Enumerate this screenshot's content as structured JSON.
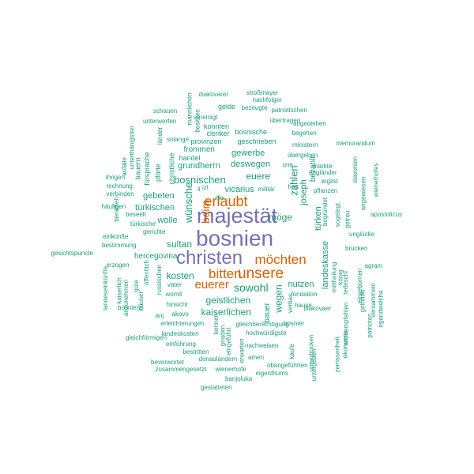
{
  "colors": {
    "purple": "#7570b3",
    "orange": "#d95f02",
    "green": "#1b9e77"
  },
  "words": [
    {
      "text": "bosnien",
      "color": "purple"
    },
    {
      "text": "majestät",
      "color": "purple"
    },
    {
      "text": "christen",
      "color": "purple"
    },
    {
      "text": "unsere",
      "color": "orange"
    },
    {
      "text": "erlaubt",
      "color": "orange"
    },
    {
      "text": "bitten",
      "color": "orange"
    },
    {
      "text": "möchten",
      "color": "orange"
    },
    {
      "text": "euerer",
      "color": "orange"
    },
    {
      "text": "beim",
      "color": "orange"
    },
    {
      "text": "zahlen",
      "color": "green"
    },
    {
      "text": "wünsche",
      "color": "green"
    },
    {
      "text": "bosnischen",
      "color": "green"
    },
    {
      "text": "sowohl",
      "color": "green"
    },
    {
      "text": "sultan",
      "color": "green"
    },
    {
      "text": "kosten",
      "color": "green"
    },
    {
      "text": "geistlichen",
      "color": "green"
    },
    {
      "text": "kaiserlichen",
      "color": "green"
    },
    {
      "text": "wegen",
      "color": "green"
    },
    {
      "text": "türkischen",
      "color": "green"
    },
    {
      "text": "wolle",
      "color": "green"
    },
    {
      "text": "euere",
      "color": "green"
    },
    {
      "text": "möge",
      "color": "green"
    },
    {
      "text": "gebeten",
      "color": "green"
    },
    {
      "text": "grundherrn",
      "color": "green"
    },
    {
      "text": "deswegen",
      "color": "green"
    },
    {
      "text": "vicarius",
      "color": "green"
    },
    {
      "text": "gewerbe",
      "color": "green"
    },
    {
      "text": "nutzen",
      "color": "green"
    },
    {
      "text": "türken",
      "color": "green"
    },
    {
      "text": "joseph",
      "color": "green"
    },
    {
      "text": "bezahlt",
      "color": "green"
    },
    {
      "text": "landeskasse",
      "color": "green"
    },
    {
      "text": "hercegovina",
      "color": "green"
    },
    {
      "text": "bauer",
      "color": "green"
    },
    {
      "text": "frommen",
      "color": "green"
    },
    {
      "text": "handel",
      "color": "green"
    },
    {
      "text": "pforte",
      "color": "green"
    },
    {
      "text": "christliche",
      "color": "green"
    },
    {
      "text": "fürsprache",
      "color": "green"
    },
    {
      "text": "bauern",
      "color": "green"
    },
    {
      "text": "anfälle",
      "color": "green"
    },
    {
      "text": "unterthänigsten",
      "color": "green"
    },
    {
      "text": "länder",
      "color": "green"
    },
    {
      "text": "solange",
      "color": "green"
    },
    {
      "text": "provinzen",
      "color": "green"
    },
    {
      "text": "geschrieben",
      "color": "green"
    },
    {
      "text": "cleriker",
      "color": "green"
    },
    {
      "text": "bosnische",
      "color": "green"
    },
    {
      "text": "konnten",
      "color": "green"
    },
    {
      "text": "vereinigt",
      "color": "green"
    },
    {
      "text": "gelde",
      "color": "green"
    },
    {
      "text": "bezeugte",
      "color": "green"
    },
    {
      "text": "patriotischen",
      "color": "green"
    },
    {
      "text": "nachfolger",
      "color": "green"
    },
    {
      "text": "stroßmayer",
      "color": "green"
    },
    {
      "text": "diakovarer",
      "color": "green"
    },
    {
      "text": "männlichen",
      "color": "green"
    },
    {
      "text": "besitzes",
      "color": "green"
    },
    {
      "text": "schauen",
      "color": "green"
    },
    {
      "text": "unterwerfen",
      "color": "green"
    },
    {
      "text": "übertragen",
      "color": "green"
    },
    {
      "text": "angedeihen",
      "color": "green"
    },
    {
      "text": "begehen",
      "color": "green"
    },
    {
      "text": "ministern",
      "color": "green"
    },
    {
      "text": "memorandum",
      "color": "green"
    },
    {
      "text": "übergeben",
      "color": "green"
    },
    {
      "text": "märkte",
      "color": "green"
    },
    {
      "text": "engländer",
      "color": "green"
    },
    {
      "text": "arglist",
      "color": "green"
    },
    {
      "text": "pflanzen",
      "color": "green"
    },
    {
      "text": "slavonien",
      "color": "green"
    },
    {
      "text": "wienerhofes",
      "color": "green"
    },
    {
      "text": "angewiesen",
      "color": "green"
    },
    {
      "text": "apostolicus",
      "color": "green"
    },
    {
      "text": "unglücke",
      "color": "green"
    },
    {
      "text": "getreu",
      "color": "green"
    },
    {
      "text": "vogelegt",
      "color": "green"
    },
    {
      "text": "begründet",
      "color": "green"
    },
    {
      "text": "una",
      "color": "green"
    },
    {
      "text": "heu",
      "color": "green"
    },
    {
      "text": "ihrigen",
      "color": "green"
    },
    {
      "text": "rechnung",
      "color": "green"
    },
    {
      "text": "verbinden",
      "color": "green"
    },
    {
      "text": "häufigen",
      "color": "green"
    },
    {
      "text": "beratheh",
      "color": "green"
    },
    {
      "text": "beseelt",
      "color": "green"
    },
    {
      "text": "türkische",
      "color": "green"
    },
    {
      "text": "gerichte",
      "color": "green"
    },
    {
      "text": "einkünfte",
      "color": "green"
    },
    {
      "text": "bestimmung",
      "color": "green"
    },
    {
      "text": "gesichtspuncte",
      "color": "green"
    },
    {
      "text": "erzogen",
      "color": "green"
    },
    {
      "text": "li",
      "color": "green"
    },
    {
      "text": "izt",
      "color": "green"
    },
    {
      "text": "nie",
      "color": "green"
    },
    {
      "text": "militär",
      "color": "green"
    },
    {
      "text": "landeseinkünfte",
      "color": "green"
    },
    {
      "text": "kaiserlich",
      "color": "green"
    },
    {
      "text": "anzunehmen",
      "color": "green"
    },
    {
      "text": "güte",
      "color": "green"
    },
    {
      "text": "öffentlich",
      "color": "green"
    },
    {
      "text": "russischen",
      "color": "green"
    },
    {
      "text": "vater",
      "color": "green"
    },
    {
      "text": "womit",
      "color": "green"
    },
    {
      "text": "hinsicht",
      "color": "green"
    },
    {
      "text": "anj",
      "color": "green"
    },
    {
      "text": "akovo",
      "color": "green"
    },
    {
      "text": "häuser",
      "color": "green"
    },
    {
      "text": "bosniens",
      "color": "green"
    },
    {
      "text": "erleichterungen",
      "color": "green"
    },
    {
      "text": "landeskosten",
      "color": "green"
    },
    {
      "text": "gleichförmigen",
      "color": "green"
    },
    {
      "text": "einführung",
      "color": "green"
    },
    {
      "text": "bestritten",
      "color": "green"
    },
    {
      "text": "bevorwortet",
      "color": "green"
    },
    {
      "text": "zusammengesetzt",
      "color": "green"
    },
    {
      "text": "wienerhofe",
      "color": "green"
    },
    {
      "text": "eigenthums",
      "color": "green"
    },
    {
      "text": "banjoluka",
      "color": "green"
    },
    {
      "text": "gestatteten",
      "color": "green"
    },
    {
      "text": "donauländern",
      "color": "green"
    },
    {
      "text": "amen",
      "color": "green"
    },
    {
      "text": "obangeführten",
      "color": "green"
    },
    {
      "text": "nachweisen",
      "color": "green"
    },
    {
      "text": "hochwürdigste",
      "color": "green"
    },
    {
      "text": "gleichberechtigung",
      "color": "green"
    },
    {
      "text": "bosnier",
      "color": "green"
    },
    {
      "text": "diakovaer",
      "color": "green"
    },
    {
      "text": "fondation",
      "color": "green"
    },
    {
      "text": "hause",
      "color": "green"
    },
    {
      "text": "verbas",
      "color": "green"
    },
    {
      "text": "kennen",
      "color": "green"
    },
    {
      "text": "gnaden",
      "color": "green"
    },
    {
      "text": "eingeführt",
      "color": "green"
    },
    {
      "text": "erwarten",
      "color": "green"
    },
    {
      "text": "kaufe",
      "color": "green"
    },
    {
      "text": "unterdrücken",
      "color": "green"
    },
    {
      "text": "untergeben",
      "color": "green"
    },
    {
      "text": "zerrissenheit",
      "color": "green"
    },
    {
      "text": "ökonomie",
      "color": "green"
    },
    {
      "text": "anzuempfehlen",
      "color": "green"
    },
    {
      "text": "tedeschi",
      "color": "green"
    },
    {
      "text": "mittheilung",
      "color": "green"
    },
    {
      "text": "könig",
      "color": "green"
    },
    {
      "text": "getreide",
      "color": "green"
    },
    {
      "text": "patrioten",
      "color": "green"
    },
    {
      "text": "eingebornen",
      "color": "green"
    },
    {
      "text": "versammeln",
      "color": "green"
    },
    {
      "text": "irgendwelche",
      "color": "green"
    },
    {
      "text": "agram",
      "color": "green"
    },
    {
      "text": "brücken",
      "color": "green"
    }
  ]
}
